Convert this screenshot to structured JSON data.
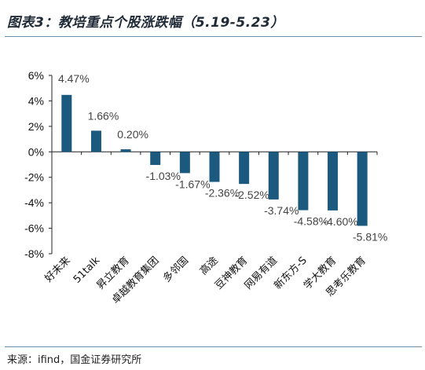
{
  "title": "图表3：教培重点个股涨跌幅（5.19-5.23）",
  "source": "来源：ifind，国金证券研究所",
  "colors": {
    "bar": "#1b5a7e",
    "rule": "#6b8eab"
  },
  "chart_data": {
    "type": "bar",
    "title": "图表3：教培重点个股涨跌幅（5.19-5.23）",
    "xlabel": "",
    "ylabel": "",
    "ylim": [
      -8,
      6
    ],
    "ytick_labels": [
      "6%",
      "4%",
      "2%",
      "0%",
      "-2%",
      "-4%",
      "-6%",
      "-8%"
    ],
    "yticks": [
      6,
      4,
      2,
      0,
      -2,
      -4,
      -6,
      -8
    ],
    "grid": false,
    "categories": [
      "好未来",
      "51talk",
      "昇立教育",
      "卓越教育集团",
      "多邻国",
      "高途",
      "豆神教育",
      "网易有道",
      "新东方-S",
      "学大教育",
      "思考乐教育"
    ],
    "values": [
      4.47,
      1.66,
      0.2,
      -1.03,
      -1.67,
      -2.36,
      -2.52,
      -3.74,
      -4.58,
      -4.6,
      -5.81
    ],
    "value_labels": [
      "4.47%",
      "1.66%",
      "0.20%",
      "-1.03%",
      "-1.67%",
      "-2.36%",
      "-2.52%",
      "-3.74%",
      "-4.58%",
      "-4.60%",
      "-5.81%"
    ]
  }
}
